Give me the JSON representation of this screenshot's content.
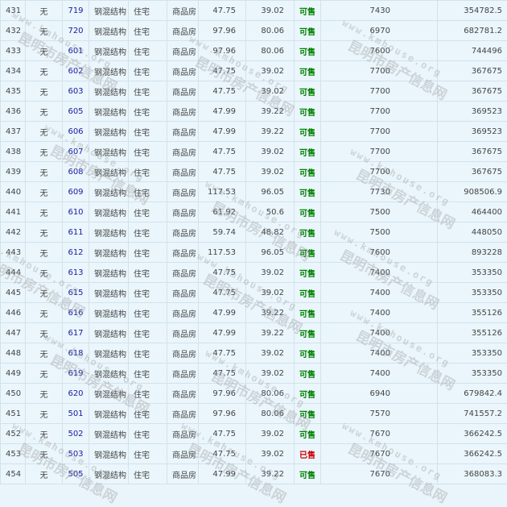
{
  "watermark": {
    "text": "昆明市房产信息网",
    "url": "www.kmhouse.org"
  },
  "colors": {
    "available": "#008000",
    "sold": "#cc0000",
    "room_link": "#1a1aa0"
  },
  "rows": [
    {
      "no": "431",
      "unit": "无",
      "room": "719",
      "struct": "钢混结构",
      "use": "住宅",
      "type": "商品房",
      "area": "47.75",
      "inner": "39.02",
      "status": "可售",
      "price": "7430",
      "total": "354782.5"
    },
    {
      "no": "432",
      "unit": "无",
      "room": "720",
      "struct": "钢混结构",
      "use": "住宅",
      "type": "商品房",
      "area": "97.96",
      "inner": "80.06",
      "status": "可售",
      "price": "6970",
      "total": "682781.2"
    },
    {
      "no": "433",
      "unit": "无",
      "room": "601",
      "struct": "钢混结构",
      "use": "住宅",
      "type": "商品房",
      "area": "97.96",
      "inner": "80.06",
      "status": "可售",
      "price": "7600",
      "total": "744496"
    },
    {
      "no": "434",
      "unit": "无",
      "room": "602",
      "struct": "钢混结构",
      "use": "住宅",
      "type": "商品房",
      "area": "47.75",
      "inner": "39.02",
      "status": "可售",
      "price": "7700",
      "total": "367675"
    },
    {
      "no": "435",
      "unit": "无",
      "room": "603",
      "struct": "钢混结构",
      "use": "住宅",
      "type": "商品房",
      "area": "47.75",
      "inner": "39.02",
      "status": "可售",
      "price": "7700",
      "total": "367675"
    },
    {
      "no": "436",
      "unit": "无",
      "room": "605",
      "struct": "钢混结构",
      "use": "住宅",
      "type": "商品房",
      "area": "47.99",
      "inner": "39.22",
      "status": "可售",
      "price": "7700",
      "total": "369523"
    },
    {
      "no": "437",
      "unit": "无",
      "room": "606",
      "struct": "钢混结构",
      "use": "住宅",
      "type": "商品房",
      "area": "47.99",
      "inner": "39.22",
      "status": "可售",
      "price": "7700",
      "total": "369523"
    },
    {
      "no": "438",
      "unit": "无",
      "room": "607",
      "struct": "钢混结构",
      "use": "住宅",
      "type": "商品房",
      "area": "47.75",
      "inner": "39.02",
      "status": "可售",
      "price": "7700",
      "total": "367675"
    },
    {
      "no": "439",
      "unit": "无",
      "room": "608",
      "struct": "钢混结构",
      "use": "住宅",
      "type": "商品房",
      "area": "47.75",
      "inner": "39.02",
      "status": "可售",
      "price": "7700",
      "total": "367675"
    },
    {
      "no": "440",
      "unit": "无",
      "room": "609",
      "struct": "钢混结构",
      "use": "住宅",
      "type": "商品房",
      "area": "117.53",
      "inner": "96.05",
      "status": "可售",
      "price": "7730",
      "total": "908506.9"
    },
    {
      "no": "441",
      "unit": "无",
      "room": "610",
      "struct": "钢混结构",
      "use": "住宅",
      "type": "商品房",
      "area": "61.92",
      "inner": "50.6",
      "status": "可售",
      "price": "7500",
      "total": "464400"
    },
    {
      "no": "442",
      "unit": "无",
      "room": "611",
      "struct": "钢混结构",
      "use": "住宅",
      "type": "商品房",
      "area": "59.74",
      "inner": "48.82",
      "status": "可售",
      "price": "7500",
      "total": "448050"
    },
    {
      "no": "443",
      "unit": "无",
      "room": "612",
      "struct": "钢混结构",
      "use": "住宅",
      "type": "商品房",
      "area": "117.53",
      "inner": "96.05",
      "status": "可售",
      "price": "7600",
      "total": "893228"
    },
    {
      "no": "444",
      "unit": "无",
      "room": "613",
      "struct": "钢混结构",
      "use": "住宅",
      "type": "商品房",
      "area": "47.75",
      "inner": "39.02",
      "status": "可售",
      "price": "7400",
      "total": "353350"
    },
    {
      "no": "445",
      "unit": "无",
      "room": "615",
      "struct": "钢混结构",
      "use": "住宅",
      "type": "商品房",
      "area": "47.75",
      "inner": "39.02",
      "status": "可售",
      "price": "7400",
      "total": "353350"
    },
    {
      "no": "446",
      "unit": "无",
      "room": "616",
      "struct": "钢混结构",
      "use": "住宅",
      "type": "商品房",
      "area": "47.99",
      "inner": "39.22",
      "status": "可售",
      "price": "7400",
      "total": "355126"
    },
    {
      "no": "447",
      "unit": "无",
      "room": "617",
      "struct": "钢混结构",
      "use": "住宅",
      "type": "商品房",
      "area": "47.99",
      "inner": "39.22",
      "status": "可售",
      "price": "7400",
      "total": "355126"
    },
    {
      "no": "448",
      "unit": "无",
      "room": "618",
      "struct": "钢混结构",
      "use": "住宅",
      "type": "商品房",
      "area": "47.75",
      "inner": "39.02",
      "status": "可售",
      "price": "7400",
      "total": "353350"
    },
    {
      "no": "449",
      "unit": "无",
      "room": "619",
      "struct": "钢混结构",
      "use": "住宅",
      "type": "商品房",
      "area": "47.75",
      "inner": "39.02",
      "status": "可售",
      "price": "7400",
      "total": "353350"
    },
    {
      "no": "450",
      "unit": "无",
      "room": "620",
      "struct": "钢混结构",
      "use": "住宅",
      "type": "商品房",
      "area": "97.96",
      "inner": "80.06",
      "status": "可售",
      "price": "6940",
      "total": "679842.4"
    },
    {
      "no": "451",
      "unit": "无",
      "room": "501",
      "struct": "钢混结构",
      "use": "住宅",
      "type": "商品房",
      "area": "97.96",
      "inner": "80.06",
      "status": "可售",
      "price": "7570",
      "total": "741557.2"
    },
    {
      "no": "452",
      "unit": "无",
      "room": "502",
      "struct": "钢混结构",
      "use": "住宅",
      "type": "商品房",
      "area": "47.75",
      "inner": "39.02",
      "status": "可售",
      "price": "7670",
      "total": "366242.5"
    },
    {
      "no": "453",
      "unit": "无",
      "room": "503",
      "struct": "钢混结构",
      "use": "住宅",
      "type": "商品房",
      "area": "47.75",
      "inner": "39.02",
      "status": "已售",
      "price": "7670",
      "total": "366242.5"
    },
    {
      "no": "454",
      "unit": "无",
      "room": "505",
      "struct": "钢混结构",
      "use": "住宅",
      "type": "商品房",
      "area": "47.99",
      "inner": "39.22",
      "status": "可售",
      "price": "7670",
      "total": "368083.3"
    }
  ]
}
